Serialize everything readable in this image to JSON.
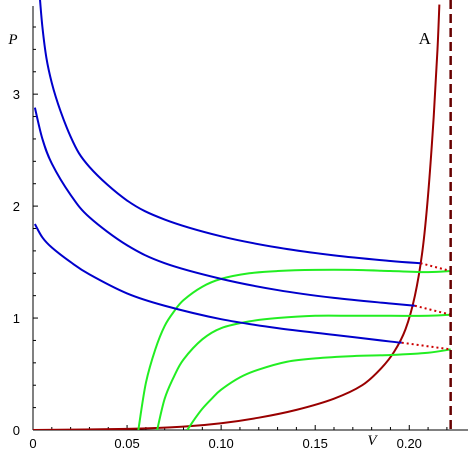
{
  "chart_data": {
    "type": "line",
    "title": "",
    "xlabel": "V",
    "ylabel": "P",
    "xlim": [
      0,
      0.225
    ],
    "ylim": [
      0,
      3.8
    ],
    "grid": false,
    "x_ticks": [
      0.05,
      0.1,
      0.15,
      0.2
    ],
    "x_tick_labels": [
      "0.05",
      "0.10",
      "0.15",
      "0.20"
    ],
    "x_origin_label": "0",
    "y_ticks": [
      0,
      1,
      2,
      3
    ],
    "y_tick_labels": [
      "0",
      "1",
      "2",
      "3"
    ],
    "annotations": [
      {
        "text": "A",
        "x": 0.205,
        "y": 3.45
      }
    ],
    "colors": {
      "blue": "#0000cc",
      "green": "#22ee22",
      "brown": "#990000",
      "red_dotted": "#cc0000",
      "dashed": "#660000"
    },
    "vertical_line": {
      "x": 0.222,
      "style": "dashed",
      "color": "#660000"
    },
    "blue_curves": [
      {
        "x": [
          0.001,
          0.005,
          0.01,
          0.02,
          0.03,
          0.05,
          0.07,
          0.1,
          0.13,
          0.16,
          0.19,
          0.206
        ],
        "y": [
          4.5,
          3.6,
          3.1,
          2.62,
          2.35,
          2.05,
          1.88,
          1.73,
          1.63,
          1.56,
          1.51,
          1.49
        ]
      },
      {
        "x": [
          0.001,
          0.005,
          0.01,
          0.02,
          0.03,
          0.05,
          0.07,
          0.1,
          0.13,
          0.16,
          0.19,
          0.203
        ],
        "y": [
          2.88,
          2.6,
          2.38,
          2.1,
          1.9,
          1.65,
          1.49,
          1.35,
          1.25,
          1.18,
          1.13,
          1.11
        ]
      },
      {
        "x": [
          0.001,
          0.005,
          0.01,
          0.02,
          0.03,
          0.05,
          0.07,
          0.1,
          0.13,
          0.16,
          0.19,
          0.196
        ],
        "y": [
          1.84,
          1.72,
          1.63,
          1.5,
          1.39,
          1.22,
          1.11,
          0.99,
          0.91,
          0.85,
          0.79,
          0.78
        ]
      }
    ],
    "green_curves": [
      {
        "x": [
          0.056,
          0.06,
          0.065,
          0.07,
          0.075,
          0.08,
          0.09,
          0.1,
          0.115,
          0.13,
          0.15,
          0.17,
          0.19,
          0.21,
          0.222
        ],
        "y": [
          0,
          0.42,
          0.72,
          0.93,
          1.06,
          1.16,
          1.28,
          1.35,
          1.4,
          1.42,
          1.43,
          1.43,
          1.42,
          1.41,
          1.42
        ]
      },
      {
        "x": [
          0.066,
          0.07,
          0.075,
          0.08,
          0.09,
          0.1,
          0.115,
          0.13,
          0.15,
          0.17,
          0.19,
          0.21,
          0.222
        ],
        "y": [
          0,
          0.28,
          0.48,
          0.63,
          0.81,
          0.91,
          0.97,
          1.0,
          1.02,
          1.02,
          1.02,
          1.02,
          1.03
        ]
      },
      {
        "x": [
          0.082,
          0.086,
          0.09,
          0.095,
          0.1,
          0.11,
          0.12,
          0.135,
          0.15,
          0.17,
          0.19,
          0.21,
          0.222
        ],
        "y": [
          0,
          0.1,
          0.19,
          0.28,
          0.36,
          0.47,
          0.54,
          0.61,
          0.64,
          0.66,
          0.67,
          0.69,
          0.72
        ]
      }
    ],
    "brown_curve": {
      "x": [
        0,
        0.05,
        0.08,
        0.1,
        0.12,
        0.14,
        0.16,
        0.175,
        0.185,
        0.192,
        0.198,
        0.203,
        0.207,
        0.21,
        0.213,
        0.215,
        0.216
      ],
      "y": [
        0,
        0.01,
        0.03,
        0.06,
        0.11,
        0.18,
        0.28,
        0.4,
        0.55,
        0.7,
        0.9,
        1.2,
        1.6,
        2.1,
        2.8,
        3.4,
        3.8
      ]
    },
    "red_dotted_segments": [
      {
        "x": [
          0.206,
          0.222
        ],
        "y": [
          1.49,
          1.42
        ]
      },
      {
        "x": [
          0.203,
          0.222
        ],
        "y": [
          1.11,
          1.03
        ]
      },
      {
        "x": [
          0.196,
          0.222
        ],
        "y": [
          0.78,
          0.72
        ]
      }
    ]
  }
}
